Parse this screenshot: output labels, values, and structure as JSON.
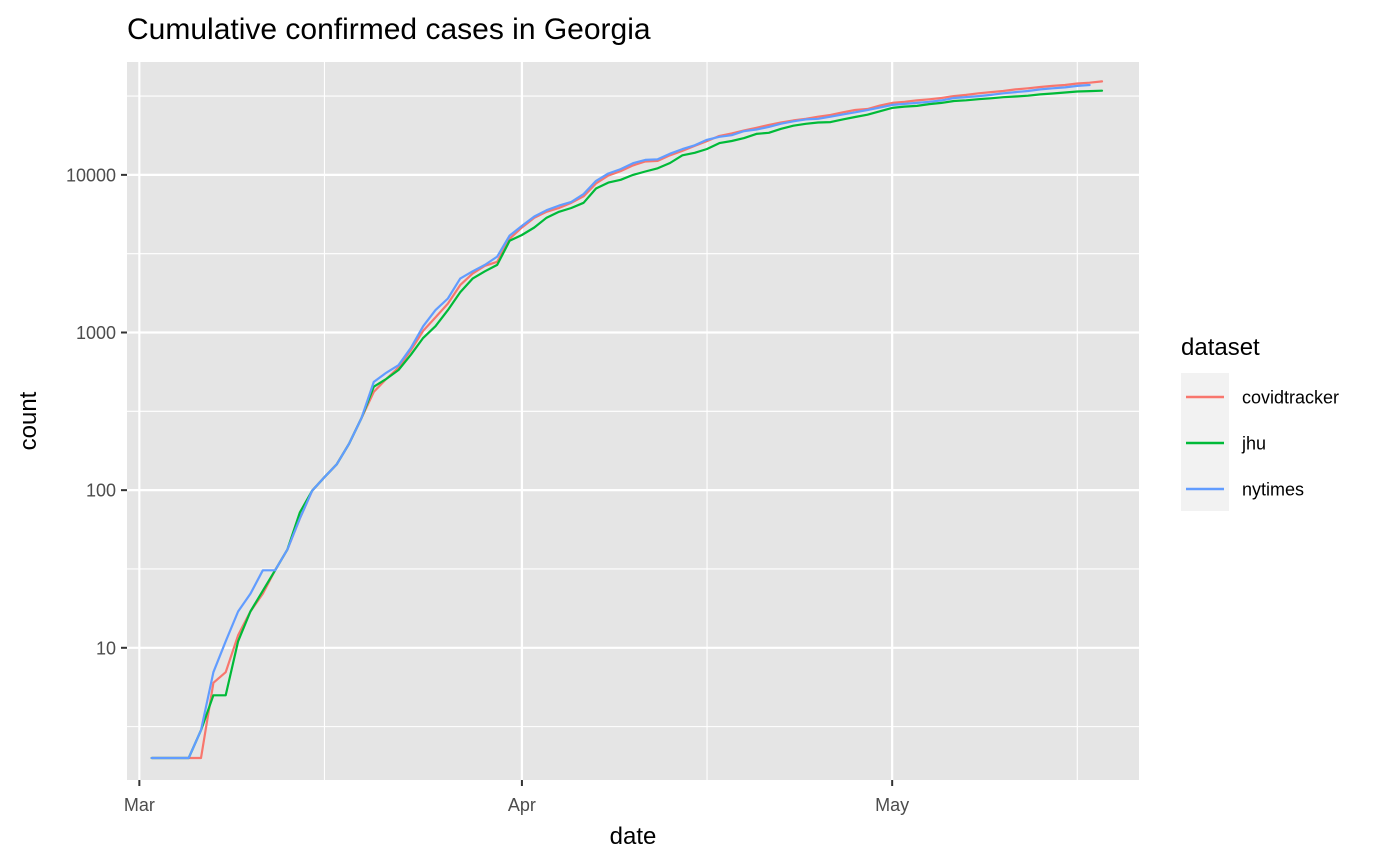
{
  "chart_data": {
    "type": "line",
    "title": "Cumulative confirmed cases in Georgia",
    "xlabel": "date",
    "ylabel": "count",
    "y_scale": "log10",
    "ylim": [
      1.45,
      52000
    ],
    "xlim": [
      "2020-02-29",
      "2020-05-21"
    ],
    "x_ticks": [
      {
        "date": "2020-03-01",
        "label": "Mar"
      },
      {
        "date": "2020-04-01",
        "label": "Apr"
      },
      {
        "date": "2020-05-01",
        "label": "May"
      }
    ],
    "x_minor_ticks": [
      "2020-03-16",
      "2020-04-16",
      "2020-05-16"
    ],
    "y_ticks": [
      {
        "value": 10,
        "label": "10"
      },
      {
        "value": 100,
        "label": "100"
      },
      {
        "value": 1000,
        "label": "1000"
      },
      {
        "value": 10000,
        "label": "10000"
      }
    ],
    "background": "#e5e5e5",
    "grid": true,
    "legend": {
      "title": "dataset",
      "position": "right"
    },
    "series": [
      {
        "name": "covidtracker",
        "color": "#f8766d",
        "points": [
          [
            "2020-03-02",
            2
          ],
          [
            "2020-03-03",
            2
          ],
          [
            "2020-03-04",
            2
          ],
          [
            "2020-03-05",
            2
          ],
          [
            "2020-03-06",
            2
          ],
          [
            "2020-03-07",
            6
          ],
          [
            "2020-03-08",
            7
          ],
          [
            "2020-03-09",
            12
          ],
          [
            "2020-03-10",
            17
          ],
          [
            "2020-03-11",
            22
          ],
          [
            "2020-03-12",
            31
          ],
          [
            "2020-03-13",
            42
          ],
          [
            "2020-03-14",
            66
          ],
          [
            "2020-03-15",
            99
          ],
          [
            "2020-03-16",
            121
          ],
          [
            "2020-03-17",
            146
          ],
          [
            "2020-03-18",
            197
          ],
          [
            "2020-03-19",
            287
          ],
          [
            "2020-03-20",
            420
          ],
          [
            "2020-03-21",
            507
          ],
          [
            "2020-03-22",
            600
          ],
          [
            "2020-03-23",
            772
          ],
          [
            "2020-03-24",
            1026
          ],
          [
            "2020-03-25",
            1247
          ],
          [
            "2020-03-26",
            1525
          ],
          [
            "2020-03-27",
            2000
          ],
          [
            "2020-03-28",
            2366
          ],
          [
            "2020-03-29",
            2651
          ],
          [
            "2020-03-30",
            2809
          ],
          [
            "2020-03-31",
            3929
          ],
          [
            "2020-04-01",
            4638
          ],
          [
            "2020-04-02",
            5348
          ],
          [
            "2020-04-03",
            5831
          ],
          [
            "2020-04-04",
            6160
          ],
          [
            "2020-04-05",
            6647
          ],
          [
            "2020-04-06",
            7314
          ],
          [
            "2020-04-07",
            8818
          ],
          [
            "2020-04-08",
            9901
          ],
          [
            "2020-04-09",
            10566
          ],
          [
            "2020-04-10",
            11483
          ],
          [
            "2020-04-11",
            12159
          ],
          [
            "2020-04-12",
            12261
          ],
          [
            "2020-04-13",
            13315
          ],
          [
            "2020-04-14",
            14223
          ],
          [
            "2020-04-15",
            15260
          ],
          [
            "2020-04-16",
            16368
          ],
          [
            "2020-04-17",
            17669
          ],
          [
            "2020-04-18",
            18301
          ],
          [
            "2020-04-19",
            19133
          ],
          [
            "2020-04-20",
            19881
          ],
          [
            "2020-04-21",
            20740
          ],
          [
            "2020-04-22",
            21512
          ],
          [
            "2020-04-23",
            22147
          ],
          [
            "2020-04-24",
            22695
          ],
          [
            "2020-04-25",
            23401
          ],
          [
            "2020-04-26",
            23973
          ],
          [
            "2020-04-27",
            24942
          ],
          [
            "2020-04-28",
            25775
          ],
          [
            "2020-04-29",
            26155
          ],
          [
            "2020-04-30",
            27492
          ],
          [
            "2020-05-01",
            28602
          ],
          [
            "2020-05-02",
            29065
          ],
          [
            "2020-05-03",
            29687
          ],
          [
            "2020-05-04",
            30136
          ],
          [
            "2020-05-05",
            30743
          ],
          [
            "2020-05-06",
            31618
          ],
          [
            "2020-05-07",
            32181
          ],
          [
            "2020-05-08",
            32911
          ],
          [
            "2020-05-09",
            33508
          ],
          [
            "2020-05-10",
            34052
          ],
          [
            "2020-05-11",
            34848
          ],
          [
            "2020-05-12",
            35427
          ],
          [
            "2020-05-13",
            36117
          ],
          [
            "2020-05-14",
            36675
          ],
          [
            "2020-05-15",
            37147
          ],
          [
            "2020-05-16",
            37973
          ],
          [
            "2020-05-17",
            38430
          ],
          [
            "2020-05-18",
            39170
          ]
        ]
      },
      {
        "name": "jhu",
        "color": "#00ba38",
        "points": [
          [
            "2020-03-02",
            2
          ],
          [
            "2020-03-03",
            2
          ],
          [
            "2020-03-04",
            2
          ],
          [
            "2020-03-05",
            2
          ],
          [
            "2020-03-06",
            3
          ],
          [
            "2020-03-07",
            5
          ],
          [
            "2020-03-08",
            5
          ],
          [
            "2020-03-09",
            11
          ],
          [
            "2020-03-10",
            17
          ],
          [
            "2020-03-11",
            23
          ],
          [
            "2020-03-12",
            31
          ],
          [
            "2020-03-13",
            42
          ],
          [
            "2020-03-14",
            72
          ],
          [
            "2020-03-15",
            99
          ],
          [
            "2020-03-16",
            121
          ],
          [
            "2020-03-17",
            146
          ],
          [
            "2020-03-18",
            197
          ],
          [
            "2020-03-19",
            287
          ],
          [
            "2020-03-20",
            453
          ],
          [
            "2020-03-21",
            507
          ],
          [
            "2020-03-22",
            578
          ],
          [
            "2020-03-23",
            723
          ],
          [
            "2020-03-24",
            925
          ],
          [
            "2020-03-25",
            1097
          ],
          [
            "2020-03-26",
            1387
          ],
          [
            "2020-03-27",
            1800
          ],
          [
            "2020-03-28",
            2198
          ],
          [
            "2020-03-29",
            2446
          ],
          [
            "2020-03-30",
            2683
          ],
          [
            "2020-03-31",
            3817
          ],
          [
            "2020-04-01",
            4154
          ],
          [
            "2020-04-02",
            4638
          ],
          [
            "2020-04-03",
            5348
          ],
          [
            "2020-04-04",
            5831
          ],
          [
            "2020-04-05",
            6160
          ],
          [
            "2020-04-06",
            6647
          ],
          [
            "2020-04-07",
            8200
          ],
          [
            "2020-04-08",
            8930
          ],
          [
            "2020-04-09",
            9300
          ],
          [
            "2020-04-10",
            10000
          ],
          [
            "2020-04-11",
            10500
          ],
          [
            "2020-04-12",
            11000
          ],
          [
            "2020-04-13",
            11900
          ],
          [
            "2020-04-14",
            13300
          ],
          [
            "2020-04-15",
            13800
          ],
          [
            "2020-04-16",
            14600
          ],
          [
            "2020-04-17",
            15900
          ],
          [
            "2020-04-18",
            16400
          ],
          [
            "2020-04-19",
            17100
          ],
          [
            "2020-04-20",
            18200
          ],
          [
            "2020-04-21",
            18500
          ],
          [
            "2020-04-22",
            19600
          ],
          [
            "2020-04-23",
            20500
          ],
          [
            "2020-04-24",
            21100
          ],
          [
            "2020-04-25",
            21500
          ],
          [
            "2020-04-26",
            21600
          ],
          [
            "2020-04-27",
            22500
          ],
          [
            "2020-04-28",
            23300
          ],
          [
            "2020-04-29",
            24100
          ],
          [
            "2020-04-30",
            25300
          ],
          [
            "2020-05-01",
            26600
          ],
          [
            "2020-05-02",
            27100
          ],
          [
            "2020-05-03",
            27400
          ],
          [
            "2020-05-04",
            28100
          ],
          [
            "2020-05-05",
            28600
          ],
          [
            "2020-05-06",
            29400
          ],
          [
            "2020-05-07",
            29700
          ],
          [
            "2020-05-08",
            30200
          ],
          [
            "2020-05-09",
            30600
          ],
          [
            "2020-05-10",
            31100
          ],
          [
            "2020-05-11",
            31400
          ],
          [
            "2020-05-12",
            31800
          ],
          [
            "2020-05-13",
            32400
          ],
          [
            "2020-05-14",
            32800
          ],
          [
            "2020-05-15",
            33300
          ],
          [
            "2020-05-16",
            33800
          ],
          [
            "2020-05-17",
            34000
          ],
          [
            "2020-05-18",
            34200
          ]
        ]
      },
      {
        "name": "nytimes",
        "color": "#619cff",
        "points": [
          [
            "2020-03-02",
            2
          ],
          [
            "2020-03-03",
            2
          ],
          [
            "2020-03-04",
            2
          ],
          [
            "2020-03-05",
            2
          ],
          [
            "2020-03-06",
            3
          ],
          [
            "2020-03-07",
            7
          ],
          [
            "2020-03-08",
            11
          ],
          [
            "2020-03-09",
            17
          ],
          [
            "2020-03-10",
            22
          ],
          [
            "2020-03-11",
            31
          ],
          [
            "2020-03-12",
            31
          ],
          [
            "2020-03-13",
            42
          ],
          [
            "2020-03-14",
            66
          ],
          [
            "2020-03-15",
            99
          ],
          [
            "2020-03-16",
            121
          ],
          [
            "2020-03-17",
            146
          ],
          [
            "2020-03-18",
            197
          ],
          [
            "2020-03-19",
            287
          ],
          [
            "2020-03-20",
            486
          ],
          [
            "2020-03-21",
            555
          ],
          [
            "2020-03-22",
            620
          ],
          [
            "2020-03-23",
            800
          ],
          [
            "2020-03-24",
            1096
          ],
          [
            "2020-03-25",
            1387
          ],
          [
            "2020-03-26",
            1643
          ],
          [
            "2020-03-27",
            2198
          ],
          [
            "2020-03-28",
            2446
          ],
          [
            "2020-03-29",
            2683
          ],
          [
            "2020-03-30",
            3032
          ],
          [
            "2020-03-31",
            4117
          ],
          [
            "2020-04-01",
            4748
          ],
          [
            "2020-04-02",
            5444
          ],
          [
            "2020-04-03",
            5967
          ],
          [
            "2020-04-04",
            6383
          ],
          [
            "2020-04-05",
            6742
          ],
          [
            "2020-04-06",
            7559
          ],
          [
            "2020-04-07",
            9156
          ],
          [
            "2020-04-08",
            10204
          ],
          [
            "2020-04-09",
            10885
          ],
          [
            "2020-04-10",
            11859
          ],
          [
            "2020-04-11",
            12452
          ],
          [
            "2020-04-12",
            12550
          ],
          [
            "2020-04-13",
            13621
          ],
          [
            "2020-04-14",
            14578
          ],
          [
            "2020-04-15",
            15409
          ],
          [
            "2020-04-16",
            16700
          ],
          [
            "2020-04-17",
            17432
          ],
          [
            "2020-04-18",
            17841
          ],
          [
            "2020-04-19",
            18947
          ],
          [
            "2020-04-20",
            19407
          ],
          [
            "2020-04-21",
            20166
          ],
          [
            "2020-04-22",
            21102
          ],
          [
            "2020-04-23",
            21883
          ],
          [
            "2020-04-24",
            22496
          ],
          [
            "2020-04-25",
            22695
          ],
          [
            "2020-04-26",
            23401
          ],
          [
            "2020-04-27",
            24200
          ],
          [
            "2020-04-28",
            24942
          ],
          [
            "2020-04-29",
            25775
          ],
          [
            "2020-04-30",
            26701
          ],
          [
            "2020-05-01",
            27800
          ],
          [
            "2020-05-02",
            28196
          ],
          [
            "2020-05-03",
            28602
          ],
          [
            "2020-05-04",
            29065
          ],
          [
            "2020-05-05",
            29687
          ],
          [
            "2020-05-06",
            30743
          ],
          [
            "2020-05-07",
            31157
          ],
          [
            "2020-05-08",
            31618
          ],
          [
            "2020-05-09",
            32181
          ],
          [
            "2020-05-10",
            32911
          ],
          [
            "2020-05-11",
            33508
          ],
          [
            "2020-05-12",
            34052
          ],
          [
            "2020-05-13",
            34848
          ],
          [
            "2020-05-14",
            35427
          ],
          [
            "2020-05-15",
            35858
          ],
          [
            "2020-05-16",
            36675
          ],
          [
            "2020-05-17",
            37147
          ]
        ]
      }
    ]
  }
}
